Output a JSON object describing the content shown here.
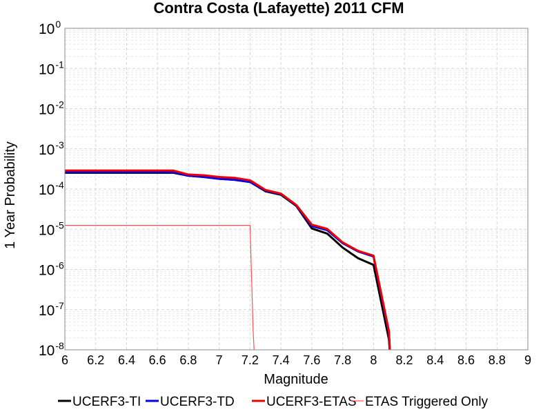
{
  "chart_data": {
    "type": "line",
    "title": "Contra Costa (Lafayette) 2011 CFM",
    "xlabel": "Magnitude",
    "ylabel": "1 Year Probability",
    "xlim": [
      6,
      9
    ],
    "ylim": [
      1e-08,
      1
    ],
    "yscale": "log",
    "grid": true,
    "legend_position": "bottom",
    "x_ticks": [
      "6",
      "6.2",
      "6.4",
      "6.6",
      "6.8",
      "7",
      "7.2",
      "7.4",
      "7.6",
      "7.8",
      "8",
      "8.2",
      "8.4",
      "8.6",
      "8.8",
      "9"
    ],
    "y_ticks": [
      {
        "base": "10",
        "exp": "0"
      },
      {
        "base": "10",
        "exp": "-1"
      },
      {
        "base": "10",
        "exp": "-2"
      },
      {
        "base": "10",
        "exp": "-3"
      },
      {
        "base": "10",
        "exp": "-4"
      },
      {
        "base": "10",
        "exp": "-5"
      },
      {
        "base": "10",
        "exp": "-6"
      },
      {
        "base": "10",
        "exp": "-7"
      },
      {
        "base": "10",
        "exp": "-8"
      }
    ],
    "series": [
      {
        "name": "UCERF3-TI",
        "color": "#000000",
        "width": 3,
        "x": [
          6.0,
          6.1,
          6.2,
          6.3,
          6.4,
          6.5,
          6.6,
          6.7,
          6.8,
          6.9,
          7.0,
          7.1,
          7.2,
          7.3,
          7.4,
          7.5,
          7.6,
          7.7,
          7.8,
          7.9,
          8.0,
          8.1,
          8.11
        ],
        "y": [
          0.000255,
          0.000255,
          0.000255,
          0.000255,
          0.000255,
          0.000255,
          0.000255,
          0.000255,
          0.000215,
          0.0002,
          0.00018,
          0.00017,
          0.00015,
          8.8e-05,
          7.2e-05,
          3.8e-05,
          1.05e-05,
          7.8e-06,
          3.5e-06,
          1.9e-06,
          1.3e-06,
          1.8e-08,
          5e-09
        ]
      },
      {
        "name": "UCERF3-TD",
        "color": "#0000ee",
        "width": 3,
        "x": [
          6.0,
          6.1,
          6.2,
          6.3,
          6.4,
          6.5,
          6.6,
          6.7,
          6.8,
          6.9,
          7.0,
          7.1,
          7.2,
          7.3,
          7.4,
          7.5,
          7.6,
          7.7,
          7.8,
          7.9,
          8.0,
          8.1,
          8.11
        ],
        "y": [
          0.000265,
          0.000265,
          0.000265,
          0.000265,
          0.000265,
          0.000265,
          0.000265,
          0.000265,
          0.000215,
          0.0002,
          0.00018,
          0.00017,
          0.00015,
          9.1e-05,
          7.5e-05,
          3.9e-05,
          1.2e-05,
          9.5e-06,
          4.5e-06,
          2.8e-06,
          2.1e-06,
          2.6e-08,
          5e-09
        ]
      },
      {
        "name": "UCERF3-ETAS",
        "color": "#ee0000",
        "width": 3,
        "x": [
          6.0,
          6.1,
          6.2,
          6.3,
          6.4,
          6.5,
          6.6,
          6.7,
          6.8,
          6.9,
          7.0,
          7.1,
          7.2,
          7.3,
          7.4,
          7.5,
          7.6,
          7.7,
          7.8,
          7.9,
          8.0,
          8.1,
          8.11
        ],
        "y": [
          0.00029,
          0.00029,
          0.00029,
          0.00029,
          0.00029,
          0.00029,
          0.00029,
          0.00029,
          0.00023,
          0.00022,
          0.0002,
          0.00019,
          0.000165,
          9.5e-05,
          7.7e-05,
          4e-05,
          1.3e-05,
          1.02e-05,
          4.7e-06,
          2.9e-06,
          2.2e-06,
          2.9e-08,
          5e-09
        ]
      },
      {
        "name": "ETAS Triggered Only",
        "color": "#ff5050",
        "width": 1.2,
        "x": [
          6.0,
          7.2,
          7.22,
          7.23
        ],
        "y": [
          1.25e-05,
          1.25e-05,
          3e-08,
          5e-09
        ]
      }
    ]
  }
}
